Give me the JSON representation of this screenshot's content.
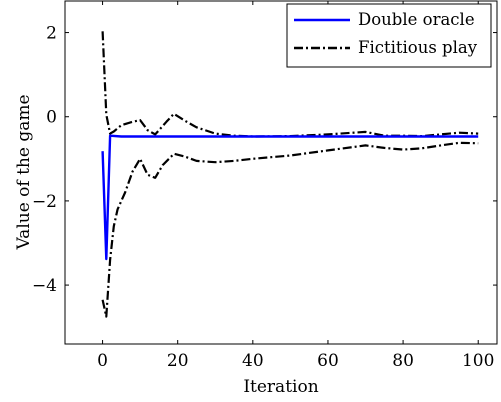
{
  "chart_data": {
    "type": "line",
    "title": "",
    "xlabel": "Iteration",
    "ylabel": "Value of the game",
    "xlim": [
      -10,
      105
    ],
    "ylim": [
      -5.4,
      2.75
    ],
    "xticks": [
      0,
      20,
      40,
      60,
      80,
      100
    ],
    "xtick_labels": [
      "0",
      "20",
      "40",
      "60",
      "80",
      "100"
    ],
    "yticks": [
      2,
      0,
      -2,
      -4
    ],
    "ytick_labels": [
      "2",
      "0",
      "−2",
      "−4"
    ],
    "grid": false,
    "legend": {
      "position": "top-right"
    },
    "series": [
      {
        "name": "Double oracle",
        "color": "#0000ff",
        "style": "solid",
        "points": [
          [
            0,
            -0.82
          ],
          [
            1,
            -3.38
          ],
          [
            2,
            -0.45
          ],
          [
            5,
            -0.47
          ],
          [
            20,
            -0.47
          ],
          [
            40,
            -0.47
          ],
          [
            60,
            -0.47
          ],
          [
            80,
            -0.47
          ],
          [
            100,
            -0.47
          ]
        ]
      },
      {
        "name": "Fictitious play",
        "color": "#000000",
        "style": "dash-dot",
        "bands": [
          [
            [
              0,
              2.03
            ],
            [
              1,
              0.05
            ],
            [
              2,
              -0.4
            ],
            [
              3,
              -0.35
            ],
            [
              5,
              -0.2
            ],
            [
              8,
              -0.12
            ],
            [
              10,
              -0.08
            ],
            [
              12,
              -0.32
            ],
            [
              14,
              -0.42
            ],
            [
              17,
              -0.12
            ],
            [
              19,
              0.07
            ],
            [
              22,
              -0.1
            ],
            [
              25,
              -0.25
            ],
            [
              30,
              -0.4
            ],
            [
              35,
              -0.45
            ],
            [
              40,
              -0.47
            ],
            [
              50,
              -0.46
            ],
            [
              60,
              -0.42
            ],
            [
              70,
              -0.36
            ],
            [
              75,
              -0.45
            ],
            [
              80,
              -0.45
            ],
            [
              85,
              -0.46
            ],
            [
              90,
              -0.42
            ],
            [
              95,
              -0.38
            ],
            [
              100,
              -0.4
            ]
          ],
          [
            [
              0,
              -4.35
            ],
            [
              1,
              -4.75
            ],
            [
              2,
              -3.4
            ],
            [
              3,
              -2.6
            ],
            [
              4,
              -2.2
            ],
            [
              6,
              -1.8
            ],
            [
              8,
              -1.3
            ],
            [
              10,
              -1.0
            ],
            [
              12,
              -1.38
            ],
            [
              14,
              -1.45
            ],
            [
              16,
              -1.15
            ],
            [
              19,
              -0.88
            ],
            [
              22,
              -0.95
            ],
            [
              25,
              -1.05
            ],
            [
              30,
              -1.08
            ],
            [
              35,
              -1.05
            ],
            [
              40,
              -1.0
            ],
            [
              50,
              -0.92
            ],
            [
              60,
              -0.8
            ],
            [
              70,
              -0.68
            ],
            [
              75,
              -0.74
            ],
            [
              80,
              -0.78
            ],
            [
              85,
              -0.75
            ],
            [
              90,
              -0.68
            ],
            [
              95,
              -0.62
            ],
            [
              100,
              -0.63
            ]
          ]
        ]
      }
    ]
  }
}
